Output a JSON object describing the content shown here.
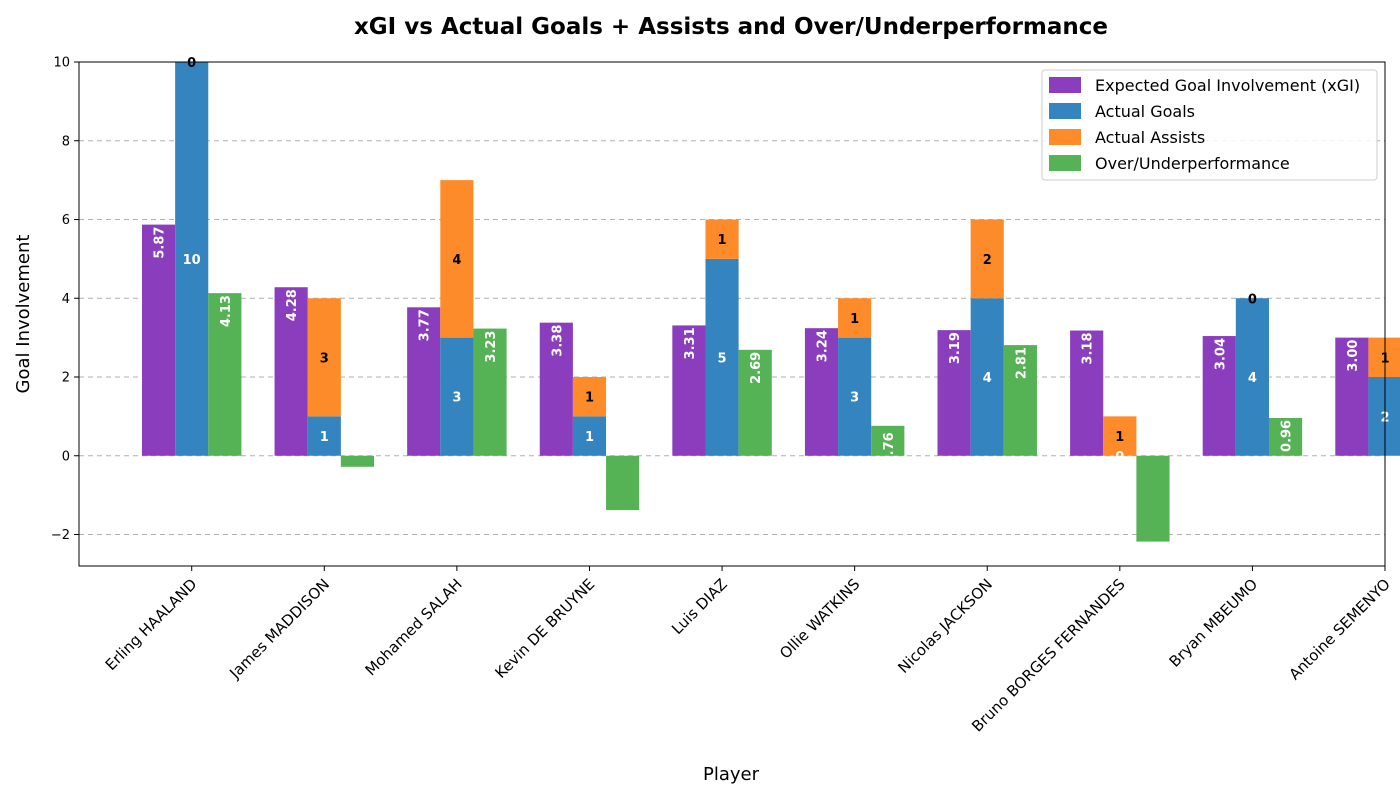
{
  "chart_data": {
    "type": "bar",
    "title": "xGI vs Actual Goals + Assists and Over/Underperformance",
    "xlabel": "Player",
    "ylabel": "Goal Involvement",
    "ylim": [
      -2.8,
      10
    ],
    "yticks": [
      -2,
      0,
      2,
      4,
      6,
      8,
      10
    ],
    "grid": "y-dashed",
    "legend_position": "top-right",
    "categories": [
      "Erling HAALAND",
      "James MADDISON",
      "Mohamed SALAH",
      "Kevin DE BRUYNE",
      "Luis DIAZ",
      "Ollie WATKINS",
      "Nicolas JACKSON",
      "Bruno BORGES FERNANDES",
      "Bryan MBEUMO",
      "Antoine SEMENYO"
    ],
    "series": [
      {
        "name": "Expected Goal Involvement (xGI)",
        "color": "#8a3dbd",
        "values": [
          5.87,
          4.28,
          3.77,
          3.38,
          3.31,
          3.24,
          3.19,
          3.18,
          3.04,
          3.0
        ],
        "labels": [
          "5.87",
          "4.28",
          "3.77",
          "3.38",
          "3.31",
          "3.24",
          "3.19",
          "3.18",
          "3.04",
          "3.00"
        ]
      },
      {
        "name": "Actual Goals",
        "color": "#3484bf",
        "values": [
          10,
          1,
          3,
          1,
          5,
          3,
          4,
          0,
          4,
          2
        ],
        "labels": [
          "10",
          "1",
          "3",
          "1",
          "5",
          "3",
          "4",
          "0",
          "4",
          "2"
        ]
      },
      {
        "name": "Actual Assists",
        "color": "#fe8b2a",
        "values": [
          0,
          3,
          4,
          1,
          1,
          1,
          2,
          1,
          0,
          1
        ],
        "labels": [
          "0",
          "3",
          "4",
          "1",
          "1",
          "1",
          "2",
          "1",
          "0",
          "1"
        ]
      },
      {
        "name": "Over/Underperformance",
        "color": "#55b255",
        "values": [
          4.13,
          -0.28,
          3.23,
          -1.38,
          2.69,
          0.76,
          2.81,
          -2.18,
          0.96,
          0.0
        ],
        "labels": [
          "4.13",
          "",
          "3.23",
          "",
          "2.69",
          ".76",
          "2.81",
          "",
          "0.96",
          ""
        ]
      }
    ]
  }
}
